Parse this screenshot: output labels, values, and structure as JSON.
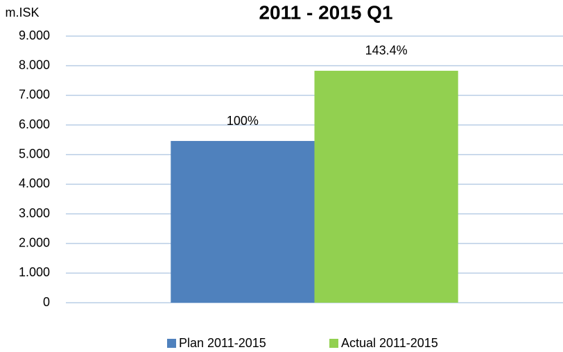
{
  "chart_data": {
    "type": "bar",
    "title": "2011 - 2015 Q1",
    "y_label": "m.ISK",
    "categories": [
      null
    ],
    "series": [
      {
        "name": "Plan 2011-2015",
        "color": "#4f81bd",
        "values": [
          5460
        ]
      },
      {
        "name": "Actual 2011-2015",
        "color": "#92d050",
        "values": [
          7830
        ]
      }
    ],
    "annotations": [
      "100%",
      "143.4%"
    ],
    "ylim": [
      0,
      9000
    ],
    "yticks": [
      0,
      {
        "value": 1000,
        "label": "1.000"
      },
      {
        "value": 2000,
        "label": "2.000"
      },
      {
        "value": 3000,
        "label": "3.000"
      },
      {
        "value": 4000,
        "label": "4.000"
      },
      {
        "value": 5000,
        "label": "5.000"
      },
      {
        "value": 6000,
        "label": "6.000"
      },
      {
        "value": 7000,
        "label": "7.000"
      },
      {
        "value": 8000,
        "label": "8.000"
      },
      {
        "value": 9000,
        "label": "9.000"
      }
    ],
    "grid": true,
    "legend": "bottom"
  }
}
